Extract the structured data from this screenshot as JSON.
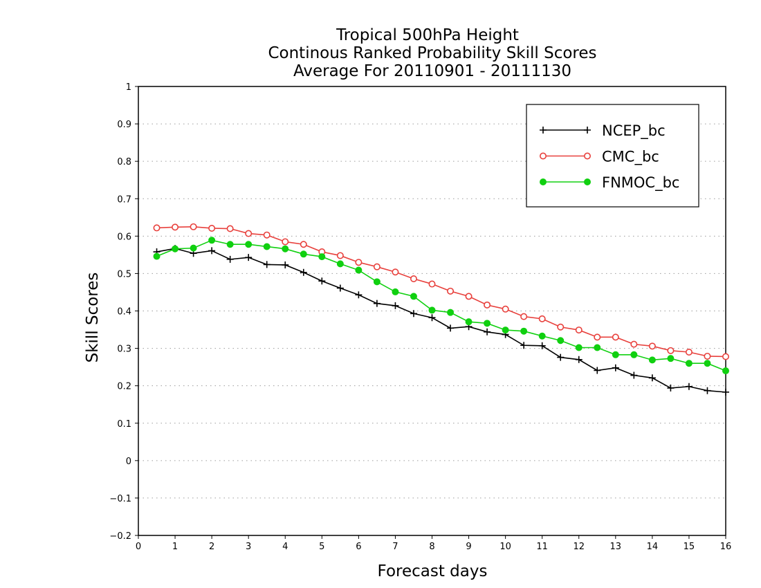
{
  "chart_data": {
    "type": "line",
    "title_lines": [
      "Tropical 500hPa Height",
      "Continous Ranked Probability Skill Scores",
      "Average For 20110901 - 20111130"
    ],
    "xlabel": "Forecast days",
    "ylabel": "Skill Scores",
    "xlim": [
      0,
      16
    ],
    "ylim": [
      -0.2,
      1
    ],
    "xticks": [
      0,
      1,
      2,
      3,
      4,
      5,
      6,
      7,
      8,
      9,
      10,
      11,
      12,
      13,
      14,
      15,
      16
    ],
    "xtick_labels": [
      "0",
      "1",
      "2",
      "3",
      "4",
      "5",
      "6",
      "7",
      "8",
      "9",
      "10",
      "11",
      "12",
      "13",
      "14",
      "15",
      "16"
    ],
    "yticks": [
      -0.2,
      -0.1,
      0,
      0.1,
      0.2,
      0.3,
      0.4,
      0.5,
      0.6,
      0.7,
      0.8,
      0.9,
      1
    ],
    "ytick_labels": [
      "−0.2",
      "−0.1",
      "0",
      "0.1",
      "0.2",
      "0.3",
      "0.4",
      "0.5",
      "0.6",
      "0.7",
      "0.8",
      "0.9",
      "1"
    ],
    "grid": "horizontal dotted",
    "legend_position": "top-right",
    "x": [
      0.5,
      1,
      1.5,
      2,
      2.5,
      3,
      3.5,
      4,
      4.5,
      5,
      5.5,
      6,
      6.5,
      7,
      7.5,
      8,
      8.5,
      9,
      9.5,
      10,
      10.5,
      11,
      11.5,
      12,
      12.5,
      13,
      13.5,
      14,
      14.5,
      15,
      15.5,
      16
    ],
    "series": [
      {
        "name": "NCEP_bc",
        "color": "#000000",
        "marker": "plus",
        "values": [
          0.558,
          0.567,
          0.554,
          0.561,
          0.538,
          0.543,
          0.524,
          0.523,
          0.503,
          0.48,
          0.461,
          0.443,
          0.42,
          0.414,
          0.393,
          0.382,
          0.354,
          0.358,
          0.344,
          0.337,
          0.308,
          0.307,
          0.276,
          0.27,
          0.241,
          0.248,
          0.228,
          0.221,
          0.194,
          0.198,
          0.187,
          0.183
        ]
      },
      {
        "name": "CMC_bc",
        "color": "#e8403c",
        "marker": "open-circle",
        "values": [
          0.622,
          0.624,
          0.625,
          0.621,
          0.62,
          0.607,
          0.603,
          0.585,
          0.578,
          0.558,
          0.548,
          0.53,
          0.518,
          0.504,
          0.486,
          0.472,
          0.453,
          0.439,
          0.416,
          0.405,
          0.385,
          0.379,
          0.357,
          0.349,
          0.33,
          0.33,
          0.311,
          0.306,
          0.294,
          0.29,
          0.279,
          0.278
        ]
      },
      {
        "name": "FNMOC_bc",
        "color": "#10d010",
        "marker": "filled-circle",
        "values": [
          0.546,
          0.566,
          0.568,
          0.589,
          0.578,
          0.578,
          0.572,
          0.566,
          0.552,
          0.545,
          0.526,
          0.509,
          0.478,
          0.451,
          0.439,
          0.402,
          0.396,
          0.371,
          0.367,
          0.349,
          0.346,
          0.333,
          0.321,
          0.302,
          0.302,
          0.283,
          0.283,
          0.269,
          0.273,
          0.26,
          0.26,
          0.24
        ]
      }
    ]
  }
}
